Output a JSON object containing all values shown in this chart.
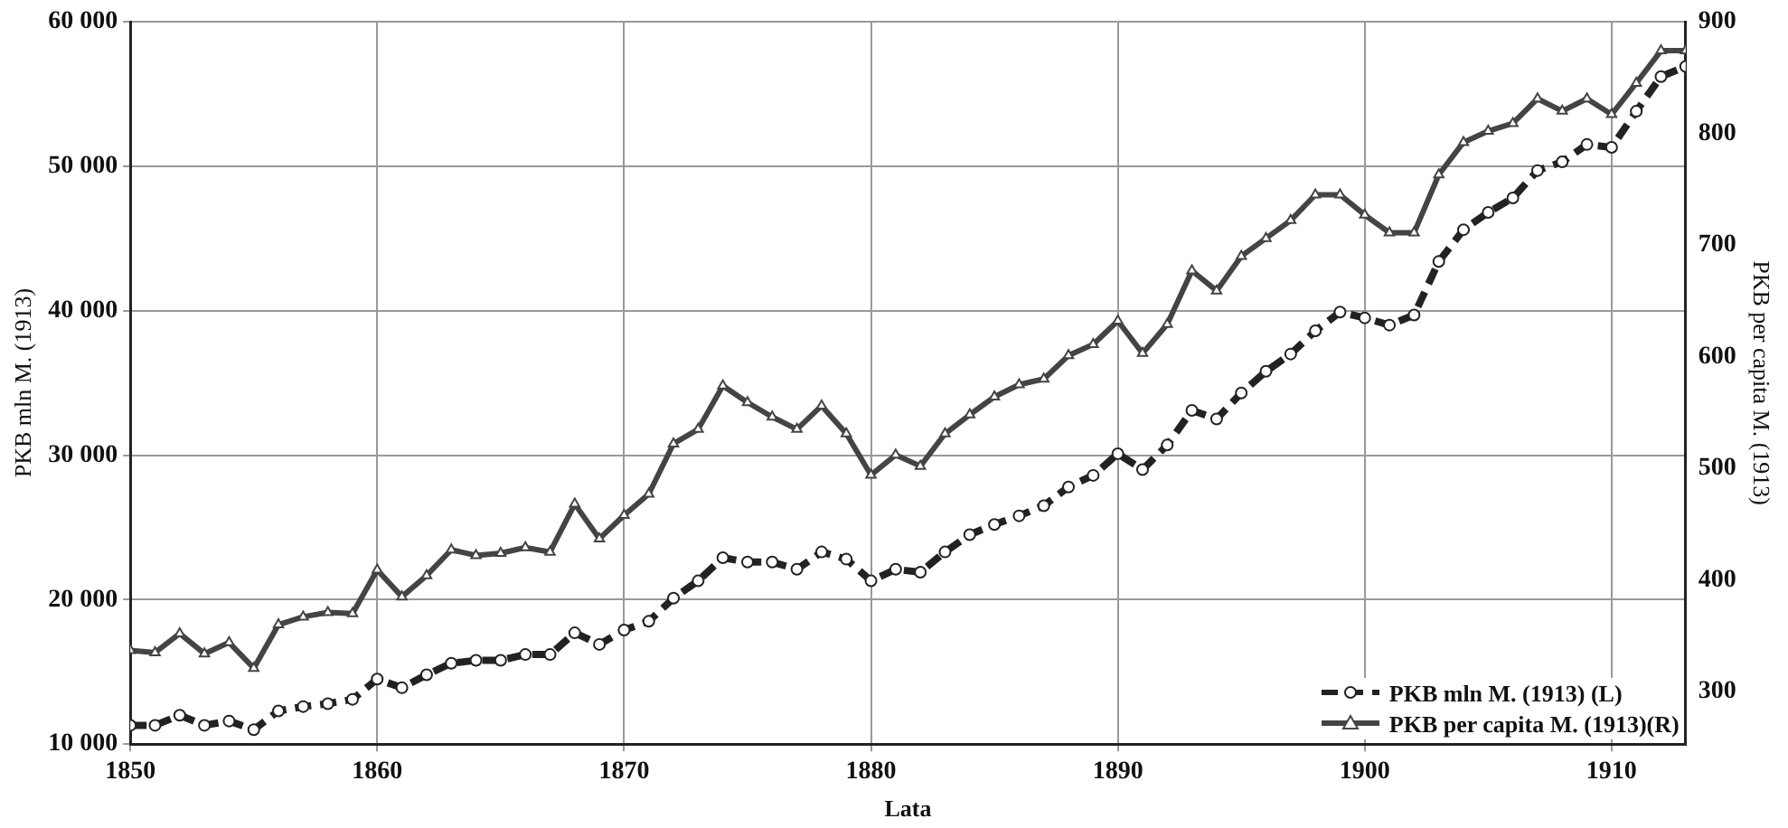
{
  "chart_data": {
    "type": "line",
    "xlabel": "Lata",
    "ylabel": "PKB mln M. (1913)",
    "y2label": "PKB per capita M. (1913)",
    "x": [
      1850,
      1851,
      1852,
      1853,
      1854,
      1855,
      1856,
      1857,
      1858,
      1859,
      1860,
      1861,
      1862,
      1863,
      1864,
      1865,
      1866,
      1867,
      1868,
      1869,
      1870,
      1871,
      1872,
      1873,
      1874,
      1875,
      1876,
      1877,
      1878,
      1879,
      1880,
      1881,
      1882,
      1883,
      1884,
      1885,
      1886,
      1887,
      1888,
      1889,
      1890,
      1891,
      1892,
      1893,
      1894,
      1895,
      1896,
      1897,
      1898,
      1899,
      1900,
      1901,
      1902,
      1903,
      1904,
      1905,
      1906,
      1907,
      1908,
      1909,
      1910,
      1911,
      1912,
      1913
    ],
    "series": [
      {
        "name": "PKB mln M. (1913) (L)",
        "color": "#222222",
        "marker": "circle",
        "line_style": "dashed",
        "values": [
          11300,
          11300,
          12000,
          11300,
          11600,
          11000,
          12300,
          12600,
          12800,
          13100,
          14500,
          13900,
          14800,
          15600,
          15800,
          15800,
          16200,
          16200,
          17700,
          16900,
          17900,
          18500,
          20100,
          21300,
          22900,
          22600,
          22600,
          22100,
          23300,
          22800,
          21300,
          22100,
          21900,
          23300,
          24500,
          25200,
          25800,
          26500,
          27800,
          28600,
          30100,
          29000,
          30700,
          33100,
          32500,
          34300,
          35800,
          37000,
          38600,
          39900,
          39500,
          39000,
          39700,
          43400,
          45600,
          46800,
          47800,
          49700,
          50300,
          51500,
          51300,
          53800,
          56200,
          56900
        ]
      },
      {
        "name": "PKB per capita M. (1913)(R)",
        "color": "#444444",
        "marker": "triangle",
        "line_style": "solid",
        "axis": "y2",
        "values": [
          337,
          335,
          352,
          334,
          344,
          321,
          360,
          367,
          371,
          370,
          409,
          385,
          404,
          427,
          422,
          424,
          429,
          425,
          468,
          437,
          458,
          477,
          522,
          535,
          574,
          559,
          546,
          535,
          556,
          531,
          494,
          512,
          502,
          531,
          548,
          564,
          575,
          580,
          601,
          611,
          632,
          603,
          629,
          677,
          659,
          690,
          706,
          722,
          745,
          745,
          727,
          711,
          711,
          763,
          792,
          802,
          809,
          831,
          820,
          831,
          817,
          845,
          874,
          874
        ]
      }
    ],
    "xlim": [
      1850,
      1913
    ],
    "xticks": [
      1850,
      1860,
      1870,
      1880,
      1890,
      1900,
      1910
    ],
    "ylim": [
      10000,
      60000
    ],
    "yticks": [
      {
        "value": 10000,
        "label": "10 000"
      },
      {
        "value": 20000,
        "label": "20 000"
      },
      {
        "value": 30000,
        "label": "30 000"
      },
      {
        "value": 40000,
        "label": "40 000"
      },
      {
        "value": 50000,
        "label": "50 000"
      },
      {
        "value": 60000,
        "label": "60 000"
      }
    ],
    "y2lim": [
      253,
      900
    ],
    "y2ticks": [
      300,
      400,
      500,
      600,
      700,
      800,
      900
    ],
    "grid": true,
    "legend": "bottom right"
  }
}
